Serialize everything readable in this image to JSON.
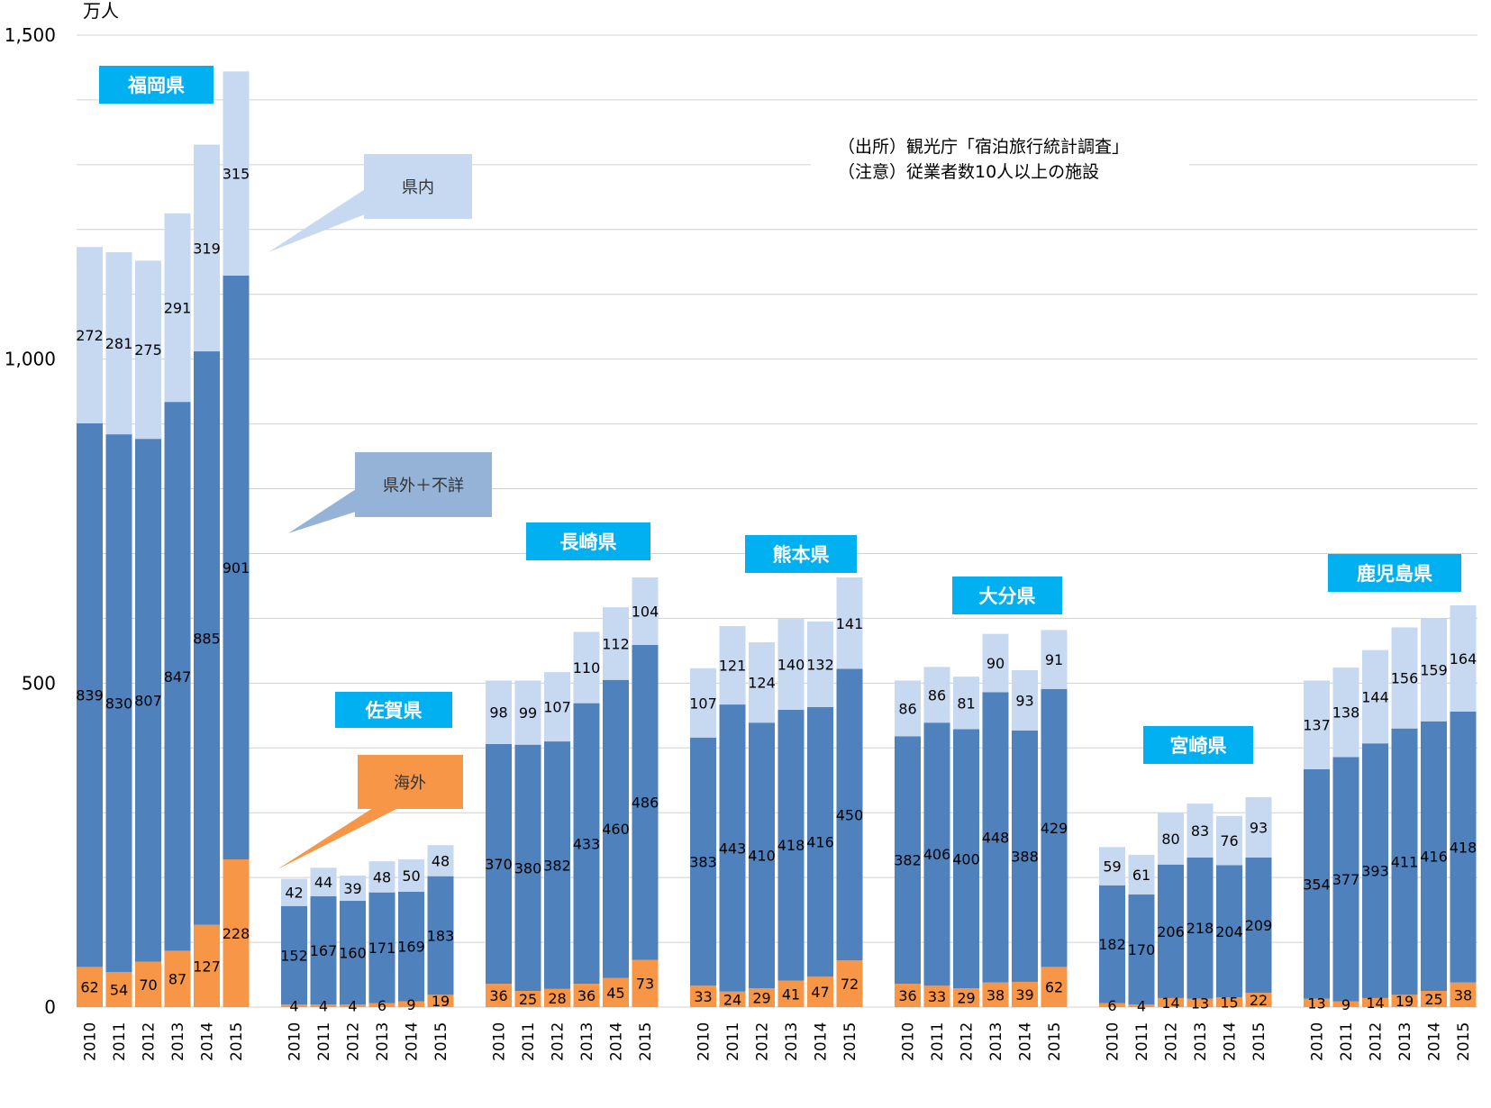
{
  "chart_data": {
    "type": "bar",
    "stacked": true,
    "unit_label": "万人",
    "ylim": [
      0,
      1500
    ],
    "yticks": [
      "0",
      "500",
      "1,000",
      "1,500"
    ],
    "grid": true,
    "years": [
      "2010",
      "2011",
      "2012",
      "2013",
      "2014",
      "2015"
    ],
    "series": [
      {
        "name": "海外",
        "color": "#f79646"
      },
      {
        "name": "県外＋不詳",
        "color": "#4f81bd"
      },
      {
        "name": "県内",
        "color": "#c6d9f1"
      }
    ],
    "groups": [
      {
        "name": "福岡県",
        "overseas": [
          62,
          54,
          70,
          87,
          127,
          228
        ],
        "outside": [
          839,
          830,
          807,
          847,
          885,
          901
        ],
        "inside": [
          272,
          281,
          275,
          291,
          319,
          315
        ]
      },
      {
        "name": "佐賀県",
        "overseas": [
          4,
          4,
          4,
          6,
          9,
          19
        ],
        "outside": [
          152,
          167,
          160,
          171,
          169,
          183
        ],
        "inside": [
          42,
          44,
          39,
          48,
          50,
          48
        ]
      },
      {
        "name": "長崎県",
        "overseas": [
          36,
          25,
          28,
          36,
          45,
          73
        ],
        "outside": [
          370,
          380,
          382,
          433,
          460,
          486
        ],
        "inside": [
          98,
          99,
          107,
          110,
          112,
          104
        ]
      },
      {
        "name": "熊本県",
        "overseas": [
          33,
          24,
          29,
          41,
          47,
          72
        ],
        "outside": [
          383,
          443,
          410,
          418,
          416,
          450
        ],
        "inside": [
          107,
          121,
          124,
          140,
          132,
          141
        ]
      },
      {
        "name": "大分県",
        "overseas": [
          36,
          33,
          29,
          38,
          39,
          62
        ],
        "outside": [
          382,
          406,
          400,
          448,
          388,
          429
        ],
        "inside": [
          86,
          86,
          81,
          90,
          93,
          91
        ]
      },
      {
        "name": "宮崎県",
        "overseas": [
          6,
          4,
          14,
          13,
          15,
          22
        ],
        "outside": [
          182,
          170,
          206,
          218,
          204,
          209
        ],
        "inside": [
          59,
          61,
          80,
          83,
          76,
          93
        ]
      },
      {
        "name": "鹿児島県",
        "overseas": [
          13,
          9,
          14,
          19,
          25,
          38
        ],
        "outside": [
          354,
          377,
          393,
          411,
          416,
          418
        ],
        "inside": [
          137,
          138,
          144,
          156,
          159,
          164
        ]
      }
    ],
    "callouts": [
      "県内",
      "県外＋不詳",
      "海外"
    ],
    "notes": [
      "（出所）観光庁「宿泊旅行統計調査」",
      "（注意）従業者数10人以上の施設"
    ]
  }
}
